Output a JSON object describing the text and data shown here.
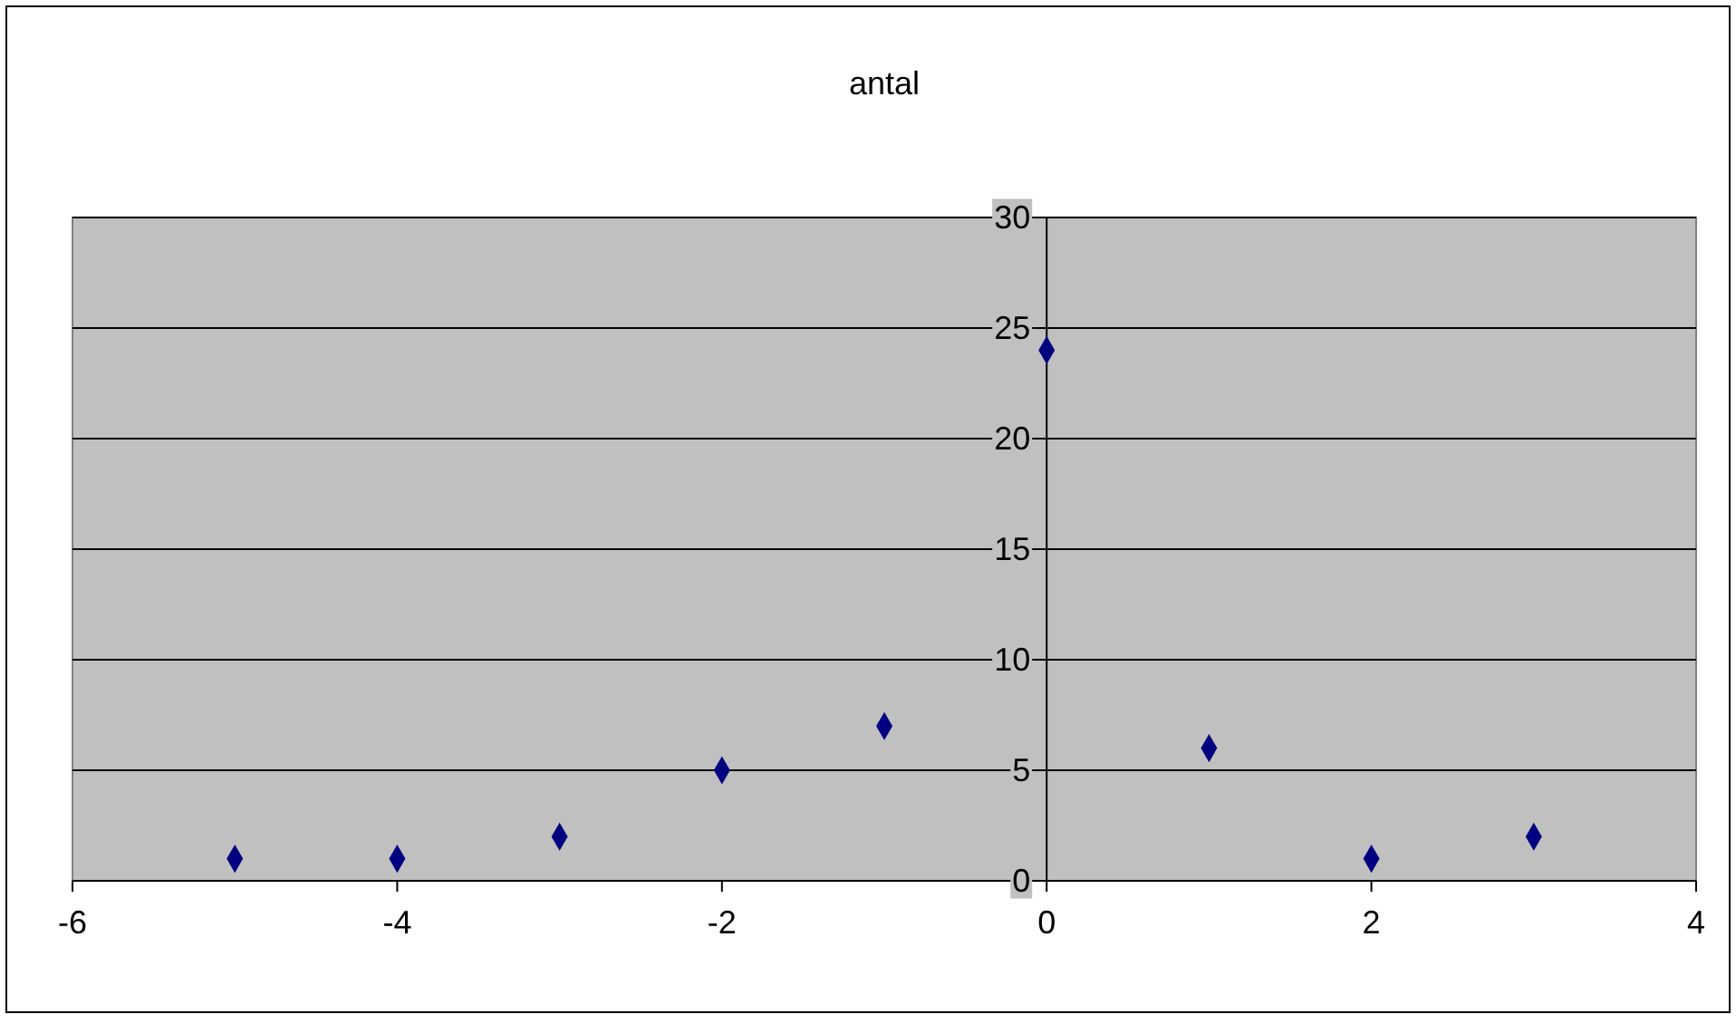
{
  "chart_data": {
    "type": "scatter",
    "title": "antal",
    "x": [
      -5,
      -4,
      -3,
      -2,
      -1,
      0,
      1,
      2,
      3
    ],
    "series": [
      {
        "color": "#000080",
        "values": [
          1,
          1,
          2,
          5,
          7,
          24,
          6,
          1,
          2
        ]
      }
    ],
    "xlim": [
      -6,
      4
    ],
    "xticks": [
      -6,
      -4,
      -2,
      0,
      2,
      4
    ],
    "ylim": [
      0,
      30
    ],
    "yticks": [
      0,
      5,
      10,
      15,
      20,
      25,
      30
    ],
    "grid": "y",
    "marker": "diamond",
    "legend": false
  }
}
